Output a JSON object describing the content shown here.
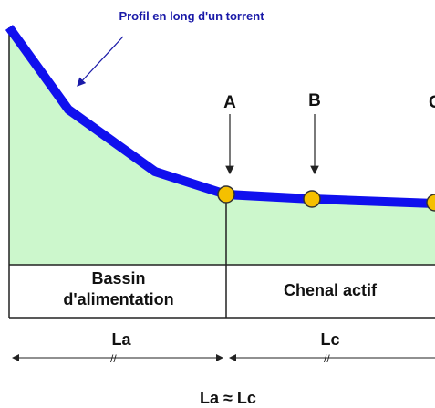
{
  "title": "Profil en long d'un torrent",
  "points": [
    "A",
    "B",
    "C"
  ],
  "zones": [
    {
      "lines": [
        "Bassin",
        "d'alimentation"
      ]
    },
    {
      "lines": [
        "Chenal actif"
      ]
    }
  ],
  "lengths": [
    "La",
    "Lc"
  ],
  "relation": "La ≈ Lc"
}
